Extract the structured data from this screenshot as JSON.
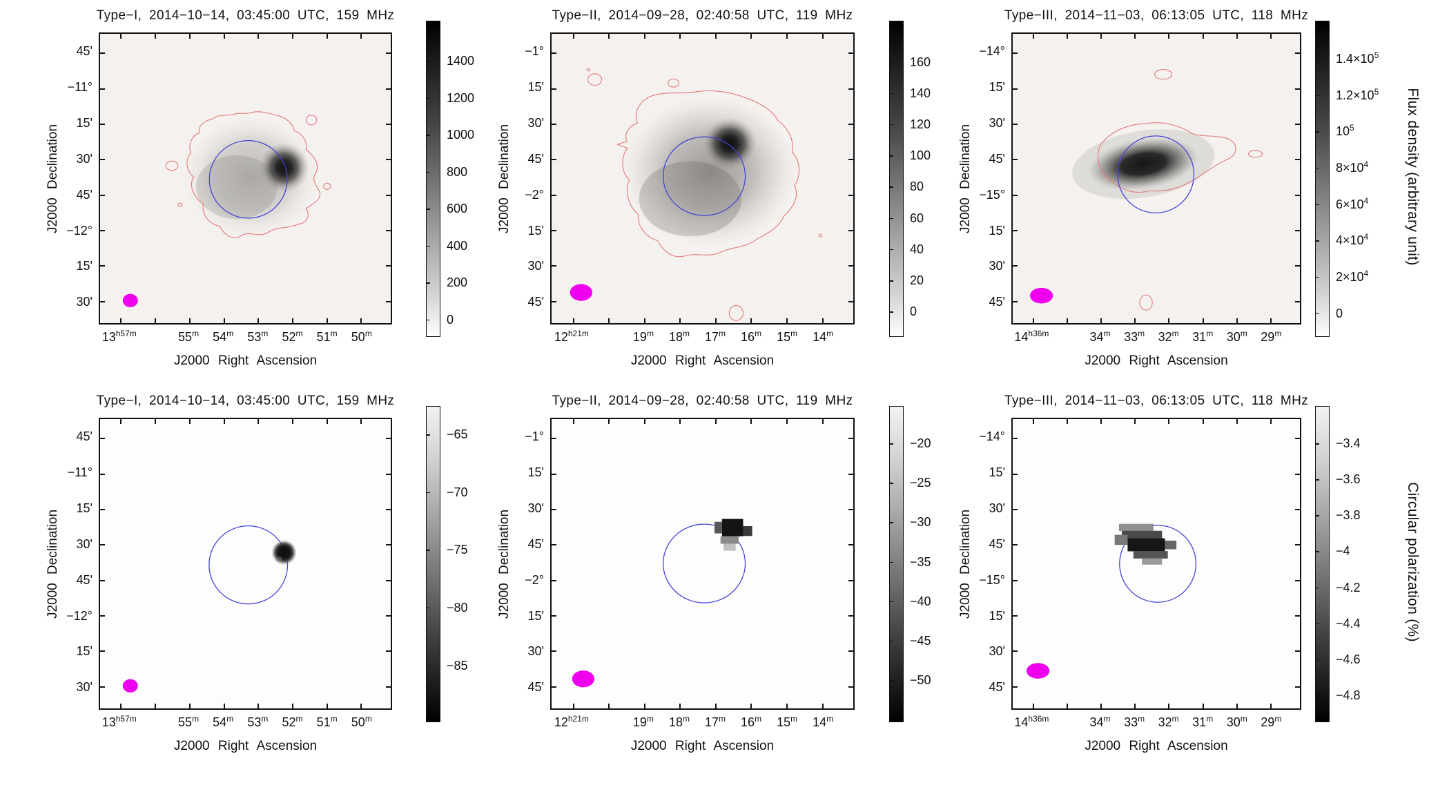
{
  "figure": {
    "row_labels": [
      "Flux density (arbitrary unit)",
      "Circular polarization (%)"
    ],
    "colors": {
      "disk_circle": "#4543d6",
      "contour": "#e27b7b",
      "beam": "#ee00ee",
      "text": "#111111",
      "flux_plot_bg": "#f4f1ee",
      "pol_plot_bg": "#fdfdfd"
    }
  },
  "panels": [
    {
      "id": "flux-type-i",
      "title": "Type−I, 2014−10−14, 03:45:00 UTC, 159 MHz",
      "xlabel": "J2000 Right Ascension",
      "ylabel": "J2000 Declination",
      "x_ticks": [
        "13^h57^m",
        "55^m",
        "54^m",
        "53^m",
        "52^m",
        "51^m",
        "50^m"
      ],
      "y_ticks": [
        "45'",
        "−11°",
        "15'",
        "30'",
        "45'",
        "−12°",
        "15'",
        "30'"
      ],
      "cbar_ticks": [
        "1400",
        "1200",
        "1000",
        "800",
        "600",
        "400",
        "200",
        "0"
      ],
      "scene": "flux_t1"
    },
    {
      "id": "flux-type-ii",
      "title": "Type−II, 2014−09−28, 02:40:58 UTC, 119 MHz",
      "xlabel": "J2000 Right Ascension",
      "ylabel": "J2000 Declination",
      "x_ticks": [
        "12^h21^m",
        "19^m",
        "18^m",
        "17^m",
        "16^m",
        "15^m",
        "14^m"
      ],
      "y_ticks": [
        "−1°",
        "15'",
        "30'",
        "45'",
        "−2°",
        "15'",
        "30'",
        "45'"
      ],
      "cbar_ticks": [
        "160",
        "140",
        "120",
        "100",
        "80",
        "60",
        "40",
        "20",
        "0"
      ],
      "scene": "flux_t2"
    },
    {
      "id": "flux-type-iii",
      "title": "Type−III, 2014−11−03, 06:13:05 UTC, 118 MHz",
      "xlabel": "J2000 Right Ascension",
      "ylabel": "J2000 Declination",
      "x_ticks": [
        "14^h36^m",
        "34^m",
        "33^m",
        "32^m",
        "31^m",
        "30^m",
        "29^m"
      ],
      "y_ticks": [
        "−14°",
        "15'",
        "30'",
        "45'",
        "−15°",
        "15'",
        "30'",
        "45'"
      ],
      "cbar_ticks": [
        "1.4×10^5",
        "1.2×10^5",
        "10^5",
        "8×10^4",
        "6×10^4",
        "4×10^4",
        "2×10^4",
        "0"
      ],
      "scene": "flux_t3"
    },
    {
      "id": "pol-type-i",
      "title": "Type−I, 2014−10−14, 03:45:00 UTC, 159 MHz",
      "xlabel": "J2000 Right Ascension",
      "ylabel": "J2000 Declination",
      "x_ticks": [
        "13^h57^m",
        "55^m",
        "54^m",
        "53^m",
        "52^m",
        "51^m",
        "50^m"
      ],
      "y_ticks": [
        "45'",
        "−11°",
        "15'",
        "30'",
        "45'",
        "−12°",
        "15'",
        "30'"
      ],
      "cbar_ticks": [
        "−65",
        "−70",
        "−75",
        "−80",
        "−85"
      ],
      "scene": "pol_t1"
    },
    {
      "id": "pol-type-ii",
      "title": "Type−II, 2014−09−28, 02:40:58 UTC, 119 MHz",
      "xlabel": "J2000 Right Ascension",
      "ylabel": "J2000 Declination",
      "x_ticks": [
        "12^h21^m",
        "19^m",
        "18^m",
        "17^m",
        "16^m",
        "15^m",
        "14^m"
      ],
      "y_ticks": [
        "−1°",
        "15'",
        "30'",
        "45'",
        "−2°",
        "15'",
        "30'",
        "45'"
      ],
      "cbar_ticks": [
        "−20",
        "−25",
        "−30",
        "−35",
        "−40",
        "−45",
        "−50"
      ],
      "scene": "pol_t2"
    },
    {
      "id": "pol-type-iii",
      "title": "Type−III, 2014−11−03, 06:13:05 UTC, 118 MHz",
      "xlabel": "J2000 Right Ascension",
      "ylabel": "J2000 Declination",
      "x_ticks": [
        "14^h36^m",
        "34^m",
        "33^m",
        "32^m",
        "31^m",
        "30^m",
        "29^m"
      ],
      "y_ticks": [
        "−14°",
        "15'",
        "30'",
        "45'",
        "−15°",
        "15'",
        "30'",
        "45'"
      ],
      "cbar_ticks": [
        "−3.4",
        "−3.6",
        "−3.8",
        "−4",
        "−4.2",
        "−4.4",
        "−4.6",
        "−4.8"
      ],
      "scene": "pol_t3"
    }
  ],
  "chart_data": [
    {
      "type": "heatmap",
      "position": "row 1, column 1",
      "title": "Type−I, 2014−10−14, 03:45:00 UTC, 159 MHz",
      "xlabel": "J2000 Right Ascension",
      "ylabel": "J2000 Declination",
      "x_tick_labels": [
        "13h57m",
        "55m",
        "54m",
        "53m",
        "52m",
        "51m",
        "50m"
      ],
      "y_tick_labels": [
        "45'",
        "−11°",
        "15'",
        "30'",
        "45'",
        "−12°",
        "15'",
        "30'"
      ],
      "colorbar_title": "Flux density (arbitrary unit)",
      "colorbar_tick_values": [
        1400,
        1200,
        1000,
        800,
        600,
        400,
        200,
        0
      ],
      "colormap": "grayscale, dark = high",
      "overlays": [
        "blue circle near center",
        "red irregular contour around diffuse gray emission",
        "dark compact source on upper-right edge of circle",
        "magenta filled ellipse lower left"
      ]
    },
    {
      "type": "heatmap",
      "position": "row 1, column 2",
      "title": "Type−II, 2014−09−28, 02:40:58 UTC, 119 MHz",
      "xlabel": "J2000 Right Ascension",
      "ylabel": "J2000 Declination",
      "x_tick_labels": [
        "12h21m",
        "19m",
        "18m",
        "17m",
        "16m",
        "15m",
        "14m"
      ],
      "y_tick_labels": [
        "−1°",
        "15'",
        "30'",
        "45'",
        "−2°",
        "15'",
        "30'",
        "45'"
      ],
      "colorbar_title": "Flux density (arbitrary unit)",
      "colorbar_tick_values": [
        160,
        140,
        120,
        100,
        80,
        60,
        40,
        20,
        0
      ],
      "colormap": "grayscale, dark = high",
      "overlays": [
        "blue circle near center",
        "large red irregular contour around broad diffuse gray emission",
        "dark compact source at top-right of circle",
        "small red contour islands top-left and bottom",
        "magenta filled ellipse lower left"
      ]
    },
    {
      "type": "heatmap",
      "position": "row 1, column 3",
      "title": "Type−III, 2014−11−03, 06:13:05 UTC, 118 MHz",
      "xlabel": "J2000 Right Ascension",
      "ylabel": "J2000 Declination",
      "x_tick_labels": [
        "14h36m",
        "34m",
        "33m",
        "32m",
        "31m",
        "30m",
        "29m"
      ],
      "y_tick_labels": [
        "−14°",
        "15'",
        "30'",
        "45'",
        "−15°",
        "15'",
        "30'",
        "45'"
      ],
      "colorbar_title": "Flux density (arbitrary unit)",
      "colorbar_tick_values": [
        140000,
        120000,
        100000,
        80000,
        60000,
        40000,
        20000,
        0
      ],
      "colorbar_tick_labels": [
        "1.4×10^5",
        "1.2×10^5",
        "10^5",
        "8×10^4",
        "6×10^4",
        "4×10^4",
        "2×10^4",
        "0"
      ],
      "colormap": "grayscale, dark = high",
      "overlays": [
        "blue circle near center",
        "horizontally elongated dark blob inside circle",
        "red contour hugging blob with islands top, right and bottom",
        "magenta filled ellipse lower left"
      ]
    },
    {
      "type": "heatmap",
      "position": "row 2, column 1",
      "title": "Type−I, 2014−10−14, 03:45:00 UTC, 159 MHz",
      "xlabel": "J2000 Right Ascension",
      "ylabel": "J2000 Declination",
      "x_tick_labels": [
        "13h57m",
        "55m",
        "54m",
        "53m",
        "52m",
        "51m",
        "50m"
      ],
      "y_tick_labels": [
        "45'",
        "−11°",
        "15'",
        "30'",
        "45'",
        "−12°",
        "15'",
        "30'"
      ],
      "colorbar_title": "Circular polarization (%)",
      "colorbar_tick_values": [
        -65,
        -70,
        -75,
        -80,
        -85
      ],
      "colormap": "grayscale, dark = more negative",
      "overlays": [
        "blue circle near center on white field",
        "small round dark patch on upper-right edge of circle",
        "magenta filled ellipse lower left"
      ]
    },
    {
      "type": "heatmap",
      "position": "row 2, column 2",
      "title": "Type−II, 2014−09−28, 02:40:58 UTC, 119 MHz",
      "xlabel": "J2000 Right Ascension",
      "ylabel": "J2000 Declination",
      "x_tick_labels": [
        "12h21m",
        "19m",
        "18m",
        "17m",
        "16m",
        "15m",
        "14m"
      ],
      "y_tick_labels": [
        "−1°",
        "15'",
        "30'",
        "45'",
        "−2°",
        "15'",
        "30'",
        "45'"
      ],
      "colorbar_title": "Circular polarization (%)",
      "colorbar_tick_values": [
        -20,
        -25,
        -30,
        -35,
        -40,
        -45,
        -50
      ],
      "colormap": "grayscale, dark = more negative",
      "overlays": [
        "blue circle near center on white field",
        "pixelated dark patch at top-right of circle",
        "magenta filled ellipse lower left"
      ]
    },
    {
      "type": "heatmap",
      "position": "row 2, column 3",
      "title": "Type−III, 2014−11−03, 06:13:05 UTC, 118 MHz",
      "xlabel": "J2000 Right Ascension",
      "ylabel": "J2000 Declination",
      "x_tick_labels": [
        "14h36m",
        "34m",
        "33m",
        "32m",
        "31m",
        "30m",
        "29m"
      ],
      "y_tick_labels": [
        "−14°",
        "15'",
        "30'",
        "45'",
        "−15°",
        "15'",
        "30'",
        "45'"
      ],
      "colorbar_title": "Circular polarization (%)",
      "colorbar_tick_values": [
        -3.4,
        -3.6,
        -3.8,
        -4,
        -4.2,
        -4.4,
        -4.6,
        -4.8
      ],
      "colormap": "grayscale, dark = more negative",
      "overlays": [
        "blue circle near center on white field",
        "pixelated elongated dark patch in left half of circle",
        "magenta filled ellipse lower left"
      ]
    }
  ]
}
